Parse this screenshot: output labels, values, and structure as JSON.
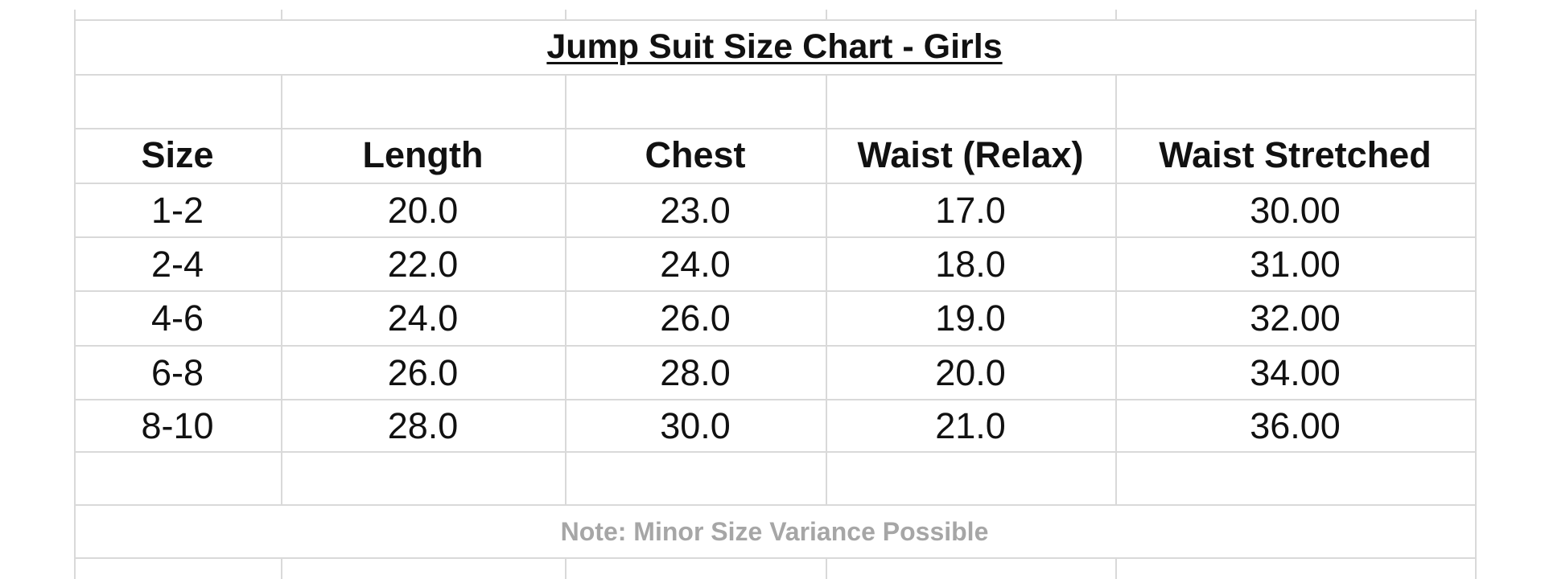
{
  "title": "Jump Suit Size Chart -  Girls",
  "columns": [
    "Size",
    "Length",
    "Chest",
    "Waist (Relax)",
    "Waist Stretched"
  ],
  "rows": [
    [
      "1-2",
      "20.0",
      "23.0",
      "17.0",
      "30.00"
    ],
    [
      "2-4",
      "22.0",
      "24.0",
      "18.0",
      "31.00"
    ],
    [
      "4-6",
      "24.0",
      "26.0",
      "19.0",
      "32.00"
    ],
    [
      "6-8",
      "26.0",
      "28.0",
      "20.0",
      "34.00"
    ],
    [
      "8-10",
      "28.0",
      "30.0",
      "21.0",
      "36.00"
    ]
  ],
  "note": "Note: Minor Size Variance Possible",
  "colors": {
    "grid": "#d9d9d9",
    "text": "#111111",
    "note": "#a6a6a6"
  }
}
